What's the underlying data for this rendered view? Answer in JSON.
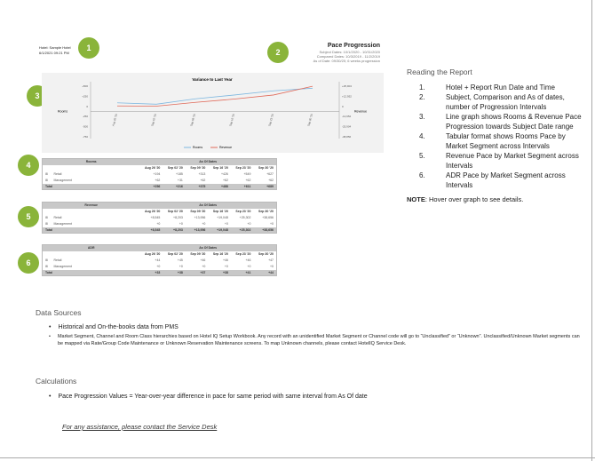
{
  "header": {
    "hotel": "Hotel: Sample Hotel",
    "run_datetime": "6/1/2021 09:21 PM",
    "title": "Pace Progression",
    "subject_dates": "Subject Dates: 10/1/2020 - 10/31/2020",
    "compared_dates": "Compared Dates: 10/3/2019 - 11/2/2019",
    "as_of": "As of Date: 09/30/20; 6 weeks progression"
  },
  "badges": [
    "1",
    "2",
    "3",
    "4",
    "5",
    "6"
  ],
  "accent": "#8ab43a",
  "chart_data": {
    "type": "line",
    "title": "Variance to Last Year",
    "ylabel": "Rooms",
    "y2label": "Revenue",
    "categories": [
      "Aug 26 '20",
      "Sep 02 '20",
      "Sep 09 '20",
      "Sep 16 '20",
      "Sep 23 '20",
      "Sep 30 '20"
    ],
    "yticks": [
      "+500",
      "+250",
      "0",
      "-250",
      "-500",
      "-750"
    ],
    "ylim": [
      -750,
      750
    ],
    "y2ticks": [
      "+25,904",
      "+12,952",
      "0",
      "-12,952",
      "-25,904",
      "-38,856"
    ],
    "y2lim": [
      -38856,
      38856
    ],
    "series": [
      {
        "name": "Rooms",
        "color": "#7fb8e0",
        "values": [
          256,
          216,
          375,
          488,
          611,
          689
        ]
      },
      {
        "name": "Revenue",
        "color": "#e06a5a",
        "values": [
          8545,
          8203,
          13956,
          19048,
          25302,
          38656
        ],
        "axis": "y2"
      }
    ],
    "legend": "bottom",
    "grid": false
  },
  "tables": [
    {
      "title": "Rooms",
      "group": "As Of Dates",
      "cols": [
        "Aug 26 '20",
        "Sep 02 '20",
        "Sep 09 '20",
        "Sep 16 '20",
        "Sep 23 '20",
        "Sep 30 '20"
      ],
      "rows": [
        {
          "label": "Retail",
          "vals": [
            "+194",
            "+185",
            "+313",
            "+426",
            "+549",
            "+627"
          ]
        },
        {
          "label": "Management",
          "vals": [
            "+62",
            "+31",
            "+62",
            "+62",
            "+62",
            "+62"
          ]
        }
      ],
      "total": {
        "label": "Total",
        "vals": [
          "+256",
          "+216",
          "+375",
          "+488",
          "+611",
          "+689"
        ]
      }
    },
    {
      "title": "Revenue",
      "group": "As Of Dates",
      "cols": [
        "Aug 26 '20",
        "Sep 02 '20",
        "Sep 09 '20",
        "Sep 16 '20",
        "Sep 23 '20",
        "Sep 30 '20"
      ],
      "rows": [
        {
          "label": "Retail",
          "vals": [
            "+8,545",
            "+8,203",
            "+13,956",
            "+19,048",
            "+25,302",
            "+38,656"
          ]
        },
        {
          "label": "Management",
          "vals": [
            "+0",
            "+0",
            "+0",
            "+0",
            "+0",
            "+0"
          ]
        }
      ],
      "total": {
        "label": "Total",
        "vals": [
          "+8,545",
          "+8,203",
          "+13,956",
          "+19,048",
          "+25,302",
          "+38,656"
        ]
      }
    },
    {
      "title": "ADR",
      "group": "As Of Dates",
      "cols": [
        "Aug 26 '20",
        "Sep 02 '20",
        "Sep 09 '20",
        "Sep 16 '20",
        "Sep 23 '20",
        "Sep 30 '20"
      ],
      "rows": [
        {
          "label": "Retail",
          "vals": [
            "+44",
            "+45",
            "+46",
            "+46",
            "+46",
            "+47"
          ]
        },
        {
          "label": "Management",
          "vals": [
            "+0",
            "+0",
            "+0",
            "+0",
            "+0",
            "+0"
          ]
        }
      ],
      "total": {
        "label": "Total",
        "vals": [
          "+33",
          "+38",
          "+37",
          "+38",
          "+41",
          "+44"
        ]
      }
    }
  ],
  "reading": {
    "title": "Reading the Report",
    "items": [
      {
        "n": "1.",
        "t": "Hotel + Report Run Date and Time"
      },
      {
        "n": "2.",
        "t": "Subject, Comparison and As of dates, number of Progression Intervals"
      },
      {
        "n": "3.",
        "t": "Line graph shows Rooms & Revenue Pace Progression towards Subject Date range"
      },
      {
        "n": "4.",
        "t": "Tabular format shows Rooms Pace by Market Segment across Intervals"
      },
      {
        "n": "5.",
        "t": "Revenue Pace by Market Segment across Intervals"
      },
      {
        "n": "6.",
        "t": "ADR Pace by Market Segment across Intervals"
      }
    ],
    "note_label": "NOTE",
    "note": ": Hover over graph to see details."
  },
  "data_sources": {
    "title": "Data Sources",
    "bullets": [
      "Historical and On-the-books data from PMS",
      "Market Segment, Channel and Room Class hierarchies based on Hotel IQ Setup Workbook. Any record with an unidentified Market Segment or Channel code will go to “Unclassified” or “Unknown”. Unclassified/Unknown Market segments can be mapped via Rate/Group Code Maintenance or Unknown Reservation Maintenance screens. To map Unknown channels, please contact HotelIQ Service Desk."
    ]
  },
  "calculations": {
    "title": "Calculations",
    "bullets": [
      "Pace Progression Values = Year-over-year difference in pace for same period with same interval from As Of date"
    ]
  },
  "help_link": "For any assistance, please contact the Service Desk"
}
